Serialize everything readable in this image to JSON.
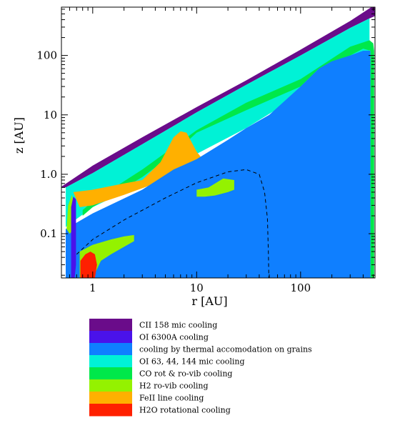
{
  "chart_data": {
    "type": "area",
    "description_units": "AU",
    "xlabel": "r [AU]",
    "ylabel": "z [AU]",
    "xscale": "log",
    "yscale": "log",
    "xlim": [
      0.5,
      520
    ],
    "ylim": [
      0.018,
      650
    ],
    "x_ticks": [
      {
        "value": 1,
        "label": "1"
      },
      {
        "value": 10,
        "label": "10"
      },
      {
        "value": 100,
        "label": "100"
      }
    ],
    "y_ticks": [
      {
        "value": 0.1,
        "label": "0.1"
      },
      {
        "value": 1,
        "label": "1.0"
      },
      {
        "value": 10,
        "label": "10"
      },
      {
        "value": 100,
        "label": "100"
      }
    ],
    "grid": false,
    "legend_position": "bottom",
    "regions": [
      {
        "name": "CII 158 mic cooling",
        "color": "#6a0c8a",
        "poly": [
          [
            0.5,
            0.6
          ],
          [
            0.55,
            0.6
          ],
          [
            1,
            1.05
          ],
          [
            3,
            3.2
          ],
          [
            10,
            11
          ],
          [
            30,
            32
          ],
          [
            100,
            100
          ],
          [
            300,
            290
          ],
          [
            460,
            420
          ],
          [
            520,
            460
          ],
          [
            520,
            650
          ],
          [
            480,
            650
          ],
          [
            300,
            380
          ],
          [
            100,
            125
          ],
          [
            30,
            38
          ],
          [
            10,
            13.5
          ],
          [
            3,
            4.2
          ],
          [
            1,
            1.4
          ],
          [
            0.5,
            0.62
          ]
        ]
      },
      {
        "name": "OI 63, 44, 144 mic cooling",
        "color": "#00f2d6",
        "poly": [
          [
            0.55,
            0.6
          ],
          [
            1,
            1.05
          ],
          [
            3,
            3.2
          ],
          [
            10,
            11
          ],
          [
            30,
            32
          ],
          [
            100,
            100
          ],
          [
            300,
            290
          ],
          [
            460,
            420
          ],
          [
            460,
            100
          ],
          [
            300,
            60
          ],
          [
            150,
            32
          ],
          [
            100,
            22
          ],
          [
            30,
            6
          ],
          [
            10,
            2.2
          ],
          [
            3,
            0.7
          ],
          [
            1,
            0.28
          ],
          [
            0.55,
            0.13
          ]
        ]
      },
      {
        "name": "CO rot & ro-vib cooling",
        "color": "#00e84a",
        "poly": [
          [
            100,
            40
          ],
          [
            300,
            140
          ],
          [
            460,
            180
          ],
          [
            500,
            160
          ],
          [
            510,
            120
          ],
          [
            510,
            0.018
          ],
          [
            470,
            0.018
          ],
          [
            470,
            120
          ],
          [
            400,
            130
          ],
          [
            300,
            100
          ],
          [
            150,
            60
          ],
          [
            100,
            30
          ],
          [
            30,
            12
          ],
          [
            10,
            5
          ],
          [
            6,
            2.2
          ],
          [
            3,
            0.9
          ],
          [
            1,
            0.28
          ],
          [
            0.8,
            0.2
          ],
          [
            0.8,
            0.25
          ],
          [
            1,
            0.35
          ],
          [
            3,
            1.2
          ],
          [
            10,
            5.5
          ],
          [
            30,
            16
          ]
        ]
      },
      {
        "name": "FeII line cooling",
        "color": "#ffb000",
        "poly": [
          [
            0.65,
            0.5
          ],
          [
            1,
            0.55
          ],
          [
            2,
            0.7
          ],
          [
            3,
            0.8
          ],
          [
            4.5,
            1.6
          ],
          [
            6,
            4.2
          ],
          [
            7,
            5.3
          ],
          [
            8,
            5
          ],
          [
            10,
            2.4
          ],
          [
            12,
            1.6
          ],
          [
            10,
            1.3
          ],
          [
            8,
            1.15
          ],
          [
            6,
            0.95
          ],
          [
            4,
            0.7
          ],
          [
            2,
            0.45
          ],
          [
            1,
            0.3
          ],
          [
            0.75,
            0.28
          ],
          [
            0.72,
            0.33
          ]
        ]
      },
      {
        "name": "cooling by thermal accomodation on grains",
        "color": "#0f7fff",
        "poly": [
          [
            0.55,
            0.018
          ],
          [
            0.55,
            0.12
          ],
          [
            1,
            0.22
          ],
          [
            3,
            0.55
          ],
          [
            6,
            1.2
          ],
          [
            10,
            1.8
          ],
          [
            20,
            3.8
          ],
          [
            30,
            6
          ],
          [
            50,
            10
          ],
          [
            100,
            30
          ],
          [
            150,
            60
          ],
          [
            200,
            80
          ],
          [
            300,
            100
          ],
          [
            400,
            120
          ],
          [
            470,
            120
          ],
          [
            470,
            0.018
          ]
        ]
      },
      {
        "name": "H2 ro-vib cooling",
        "color": "#94f200",
        "poly": [
          [
            0.75,
            0.018
          ],
          [
            0.75,
            0.05
          ],
          [
            1,
            0.065
          ],
          [
            1.5,
            0.08
          ],
          [
            2,
            0.09
          ],
          [
            2.5,
            0.095
          ],
          [
            2.5,
            0.075
          ],
          [
            2,
            0.06
          ],
          [
            1.5,
            0.045
          ],
          [
            1.2,
            0.035
          ],
          [
            1,
            0.018
          ]
        ]
      },
      {
        "name": "H2 ro-vib cooling (upper band)",
        "color": "#94f200",
        "poly": [
          [
            10,
            0.55
          ],
          [
            13,
            0.6
          ],
          [
            18,
            0.85
          ],
          [
            23,
            0.8
          ],
          [
            23,
            0.55
          ],
          [
            20,
            0.5
          ],
          [
            15,
            0.44
          ],
          [
            12,
            0.42
          ],
          [
            10,
            0.42
          ]
        ]
      },
      {
        "name": "H2 ro-vib cooling (wall)",
        "color": "#94f200",
        "poly": [
          [
            0.56,
            0.12
          ],
          [
            0.58,
            0.3
          ],
          [
            0.63,
            0.45
          ],
          [
            0.66,
            0.3
          ],
          [
            0.66,
            0.12
          ],
          [
            0.6,
            0.1
          ]
        ]
      },
      {
        "name": "OI 6300A cooling",
        "color": "#4a12ea",
        "poly": [
          [
            0.62,
            0.018
          ],
          [
            0.62,
            0.28
          ],
          [
            0.65,
            0.42
          ],
          [
            0.69,
            0.38
          ],
          [
            0.69,
            0.03
          ],
          [
            0.67,
            0.018
          ]
        ]
      },
      {
        "name": "H2O rotational cooling",
        "color": "#ff2000",
        "poly": [
          [
            0.76,
            0.018
          ],
          [
            0.76,
            0.035
          ],
          [
            0.85,
            0.045
          ],
          [
            0.95,
            0.05
          ],
          [
            1.05,
            0.045
          ],
          [
            1.1,
            0.03
          ],
          [
            1.05,
            0.018
          ]
        ]
      }
    ],
    "annotation_curve": {
      "style": "dashed",
      "points": [
        [
          0.7,
          0.045
        ],
        [
          1,
          0.08
        ],
        [
          2,
          0.17
        ],
        [
          5,
          0.4
        ],
        [
          10,
          0.72
        ],
        [
          20,
          1.1
        ],
        [
          30,
          1.2
        ],
        [
          40,
          1.0
        ],
        [
          45,
          0.5
        ],
        [
          48,
          0.18
        ],
        [
          49,
          0.05
        ],
        [
          49.5,
          0.018
        ]
      ]
    },
    "legend": [
      {
        "label": "CII 158 mic cooling",
        "color": "#6a0c8a"
      },
      {
        "label": "OI 6300A cooling",
        "color": "#4a12ea"
      },
      {
        "label": "cooling by thermal accomodation on grains",
        "color": "#0f7fff"
      },
      {
        "label": "OI 63, 44, 144 mic cooling",
        "color": "#00f2d6"
      },
      {
        "label": "CO rot & ro-vib cooling",
        "color": "#00e84a"
      },
      {
        "label": "H2 ro-vib cooling",
        "color": "#94f200"
      },
      {
        "label": "FeII line cooling",
        "color": "#ffb000"
      },
      {
        "label": "H2O rotational cooling",
        "color": "#ff2000"
      }
    ]
  }
}
